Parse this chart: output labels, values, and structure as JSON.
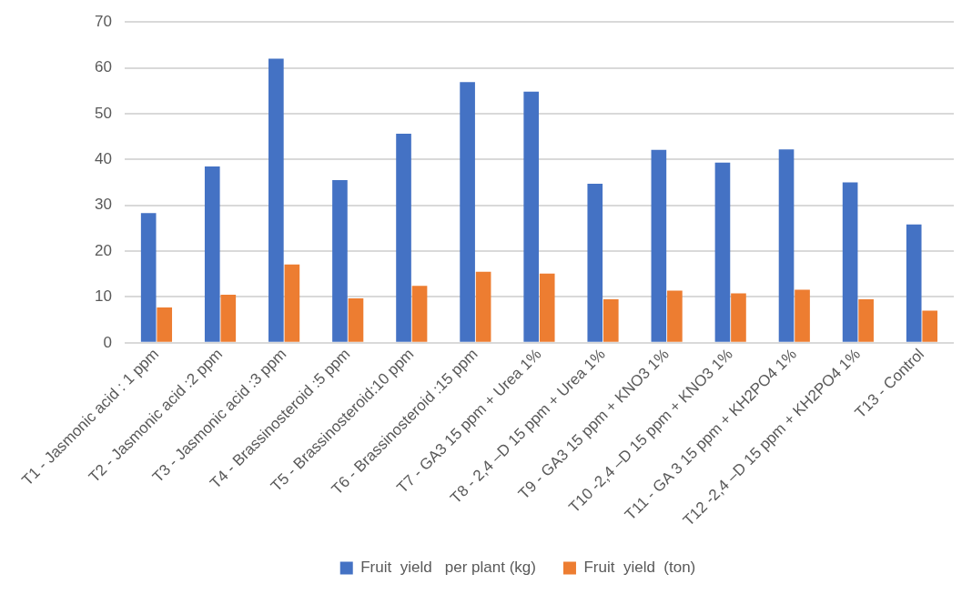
{
  "chart_data": {
    "type": "bar",
    "categories": [
      "T1 - Jasmonic acid : 1 ppm",
      "T2 - Jasmonic acid :2 ppm",
      "T3 - Jasmonic acid :3 ppm",
      "T4 - Brassinosteroid :5 ppm",
      "T5 - Brassinosteroid:10 ppm",
      "T6 - Brassinosteroid :15 ppm",
      "T7 - GA3 15 ppm + Urea 1%",
      "T8 - 2,4 –D 15 ppm + Urea 1%",
      "T9 - GA3 15 ppm + KNO3 1%",
      "T10 -2,4 –D 15 ppm + KNO3 1%",
      "T11 - GA 3 15 ppm + KH2PO4 1%",
      "T12 -2,4 –D 15 ppm + KH2PO4 1%",
      "T13 - Control"
    ],
    "series": [
      {
        "name": "Fruit  yield   per plant (kg)",
        "color": "#4472c4",
        "values": [
          28.3,
          38.5,
          62.0,
          35.5,
          45.6,
          56.9,
          54.8,
          34.7,
          42.1,
          39.3,
          42.2,
          35.0,
          25.8
        ]
      },
      {
        "name": "Fruit  yield  (ton)",
        "color": "#ed7d31",
        "values": [
          7.7,
          10.5,
          17.1,
          9.7,
          12.4,
          15.5,
          15.1,
          9.5,
          11.4,
          10.8,
          11.6,
          9.5,
          7.0
        ]
      }
    ],
    "ylim": [
      0,
      70
    ],
    "yticks": [
      0,
      10,
      20,
      30,
      40,
      50,
      60,
      70
    ],
    "grid": "y",
    "legend": "bottom"
  }
}
